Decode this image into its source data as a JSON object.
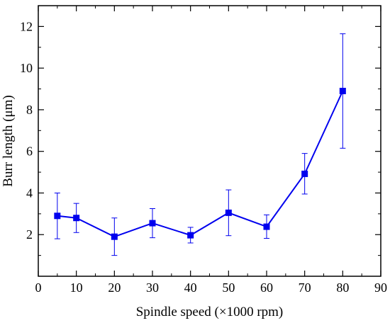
{
  "chart_data": {
    "type": "line",
    "xlabel": "Spindle speed (×1000 rpm)",
    "ylabel": "Burr length (μm)",
    "xlim": [
      0,
      90
    ],
    "ylim": [
      0,
      13
    ],
    "x_ticks": [
      0,
      10,
      20,
      30,
      40,
      50,
      60,
      70,
      80,
      90
    ],
    "y_ticks": [
      2,
      4,
      6,
      8,
      10,
      12
    ],
    "grid": false,
    "legend": "none",
    "series": [
      {
        "x": [
          5,
          10,
          20,
          30,
          40,
          50,
          60,
          70,
          80
        ],
        "y": [
          2.9,
          2.8,
          1.9,
          2.55,
          1.97,
          3.05,
          2.38,
          4.92,
          8.9
        ],
        "error_low": [
          1.8,
          2.1,
          1.0,
          1.85,
          1.6,
          1.95,
          1.82,
          3.95,
          6.15
        ],
        "error_high": [
          4.0,
          3.5,
          2.8,
          3.25,
          2.35,
          4.15,
          2.95,
          5.9,
          11.65
        ],
        "color": "#0000ee",
        "marker": "square"
      }
    ]
  }
}
